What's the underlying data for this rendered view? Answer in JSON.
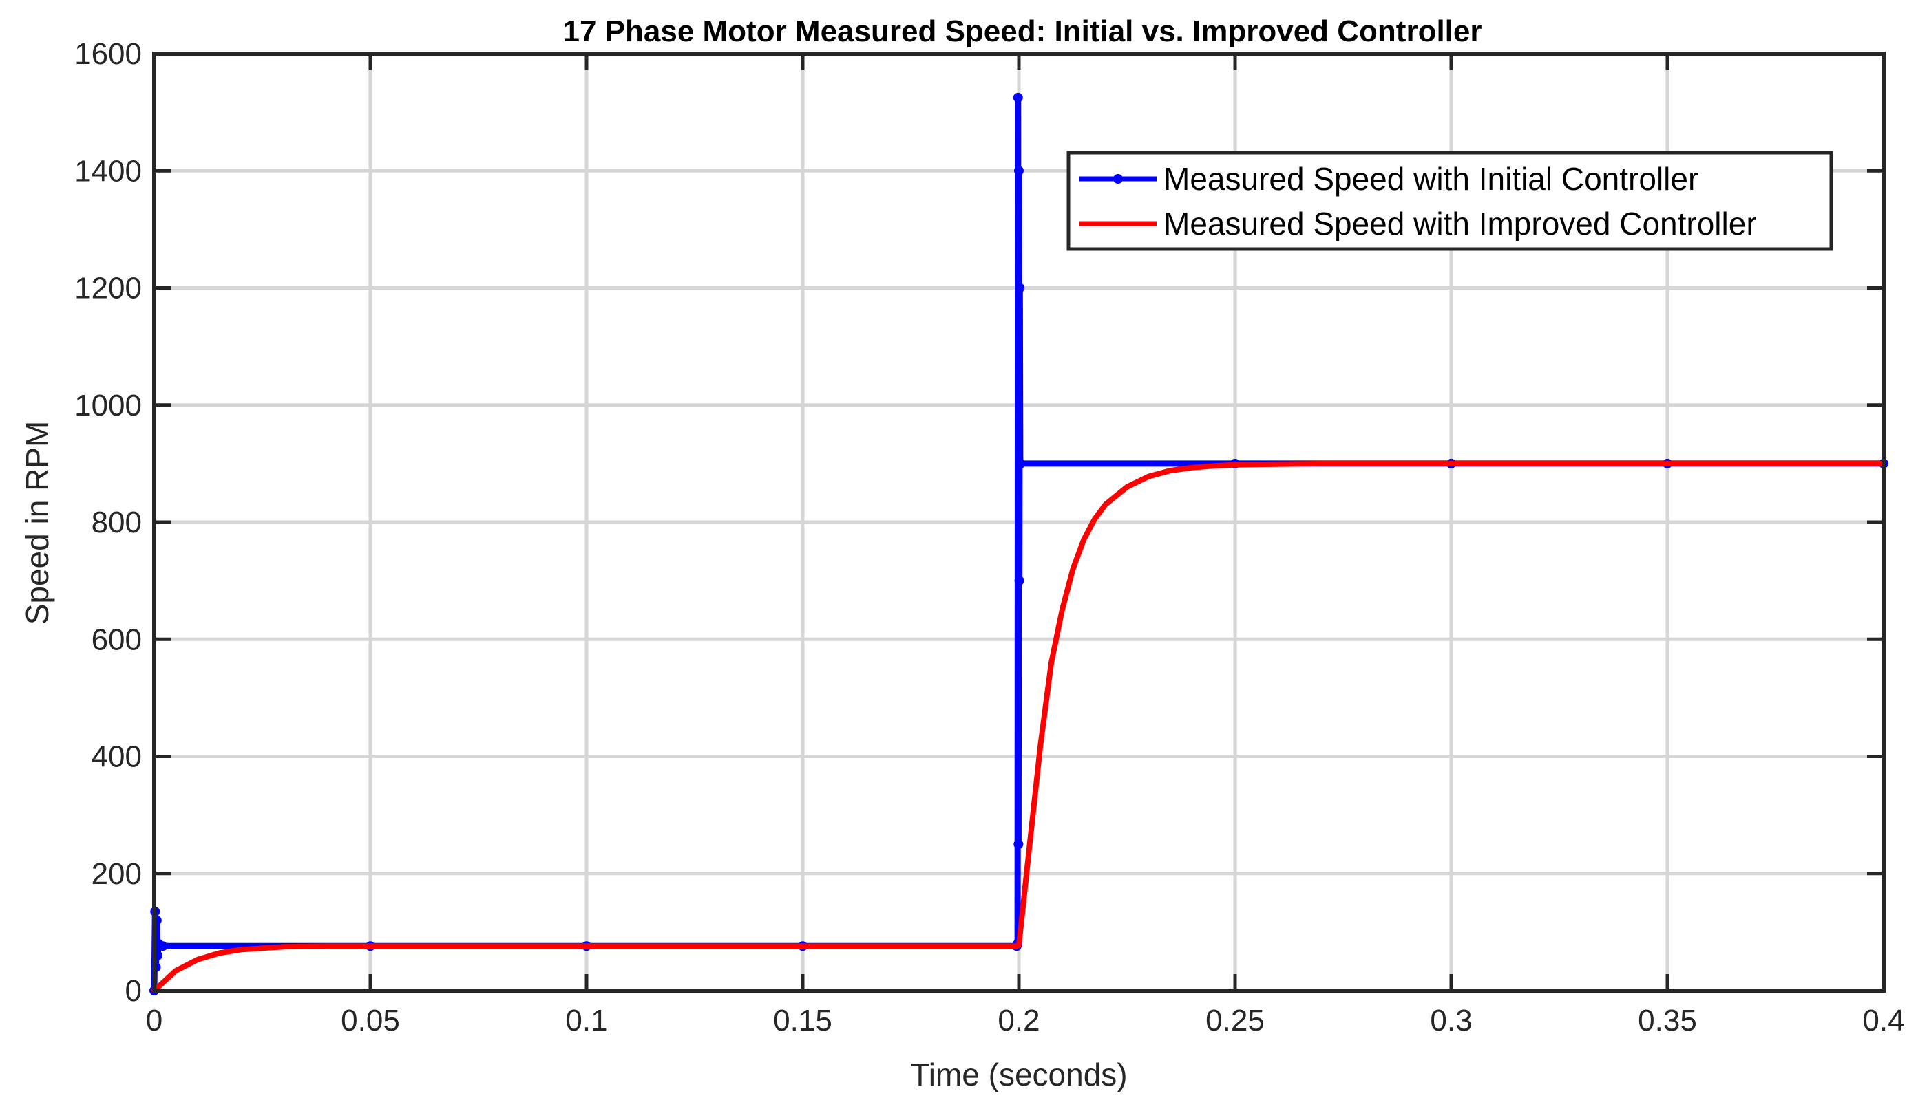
{
  "chart_data": {
    "type": "line",
    "title": "17 Phase Motor Measured Speed: Initial vs. Improved Controller",
    "xlabel": "Time (seconds)",
    "ylabel": "Speed in RPM",
    "xlim": [
      0,
      0.4
    ],
    "ylim": [
      0,
      1600
    ],
    "x_ticks": [
      0,
      0.05,
      0.1,
      0.15,
      0.2,
      0.25,
      0.3,
      0.35,
      0.4
    ],
    "x_tick_labels": [
      "0",
      "0.05",
      "0.1",
      "0.15",
      "0.2",
      "0.25",
      "0.3",
      "0.35",
      "0.4"
    ],
    "y_ticks": [
      0,
      200,
      400,
      600,
      800,
      1000,
      1200,
      1400,
      1600
    ],
    "y_tick_labels": [
      "0",
      "200",
      "400",
      "600",
      "800",
      "1000",
      "1200",
      "1400",
      "1600"
    ],
    "grid": true,
    "legend_position": "top-right",
    "series": [
      {
        "name": "Measured Speed with Initial Controller",
        "color": "#0000ff",
        "marker": "dot",
        "x": [
          0,
          0.0002,
          0.0004,
          0.0006,
          0.0008,
          0.001,
          0.002,
          0.05,
          0.1,
          0.15,
          0.1995,
          0.1997,
          0.1998,
          0.1999,
          0.2,
          0.2001,
          0.2002,
          0.2003,
          0.2004,
          0.25,
          0.3,
          0.35,
          0.4
        ],
        "y": [
          0,
          135,
          40,
          120,
          60,
          80,
          76,
          76,
          76,
          76,
          76,
          80,
          1525,
          250,
          1400,
          700,
          1200,
          900,
          900,
          900,
          900,
          900,
          900
        ]
      },
      {
        "name": "Measured Speed with Improved Controller",
        "color": "#ff0000",
        "marker": "none",
        "x": [
          0,
          0.005,
          0.01,
          0.015,
          0.02,
          0.03,
          0.04,
          0.05,
          0.1,
          0.15,
          0.1995,
          0.2,
          0.2025,
          0.205,
          0.2075,
          0.21,
          0.2125,
          0.215,
          0.2175,
          0.22,
          0.225,
          0.23,
          0.235,
          0.24,
          0.245,
          0.25,
          0.26,
          0.27,
          0.28,
          0.3,
          0.35,
          0.4
        ],
        "y": [
          0,
          34,
          53,
          64,
          70,
          75,
          76,
          76,
          76,
          76,
          76,
          78,
          250,
          420,
          560,
          650,
          720,
          770,
          805,
          830,
          860,
          878,
          888,
          893,
          896,
          898,
          899,
          900,
          900,
          900,
          900,
          900
        ]
      }
    ]
  }
}
